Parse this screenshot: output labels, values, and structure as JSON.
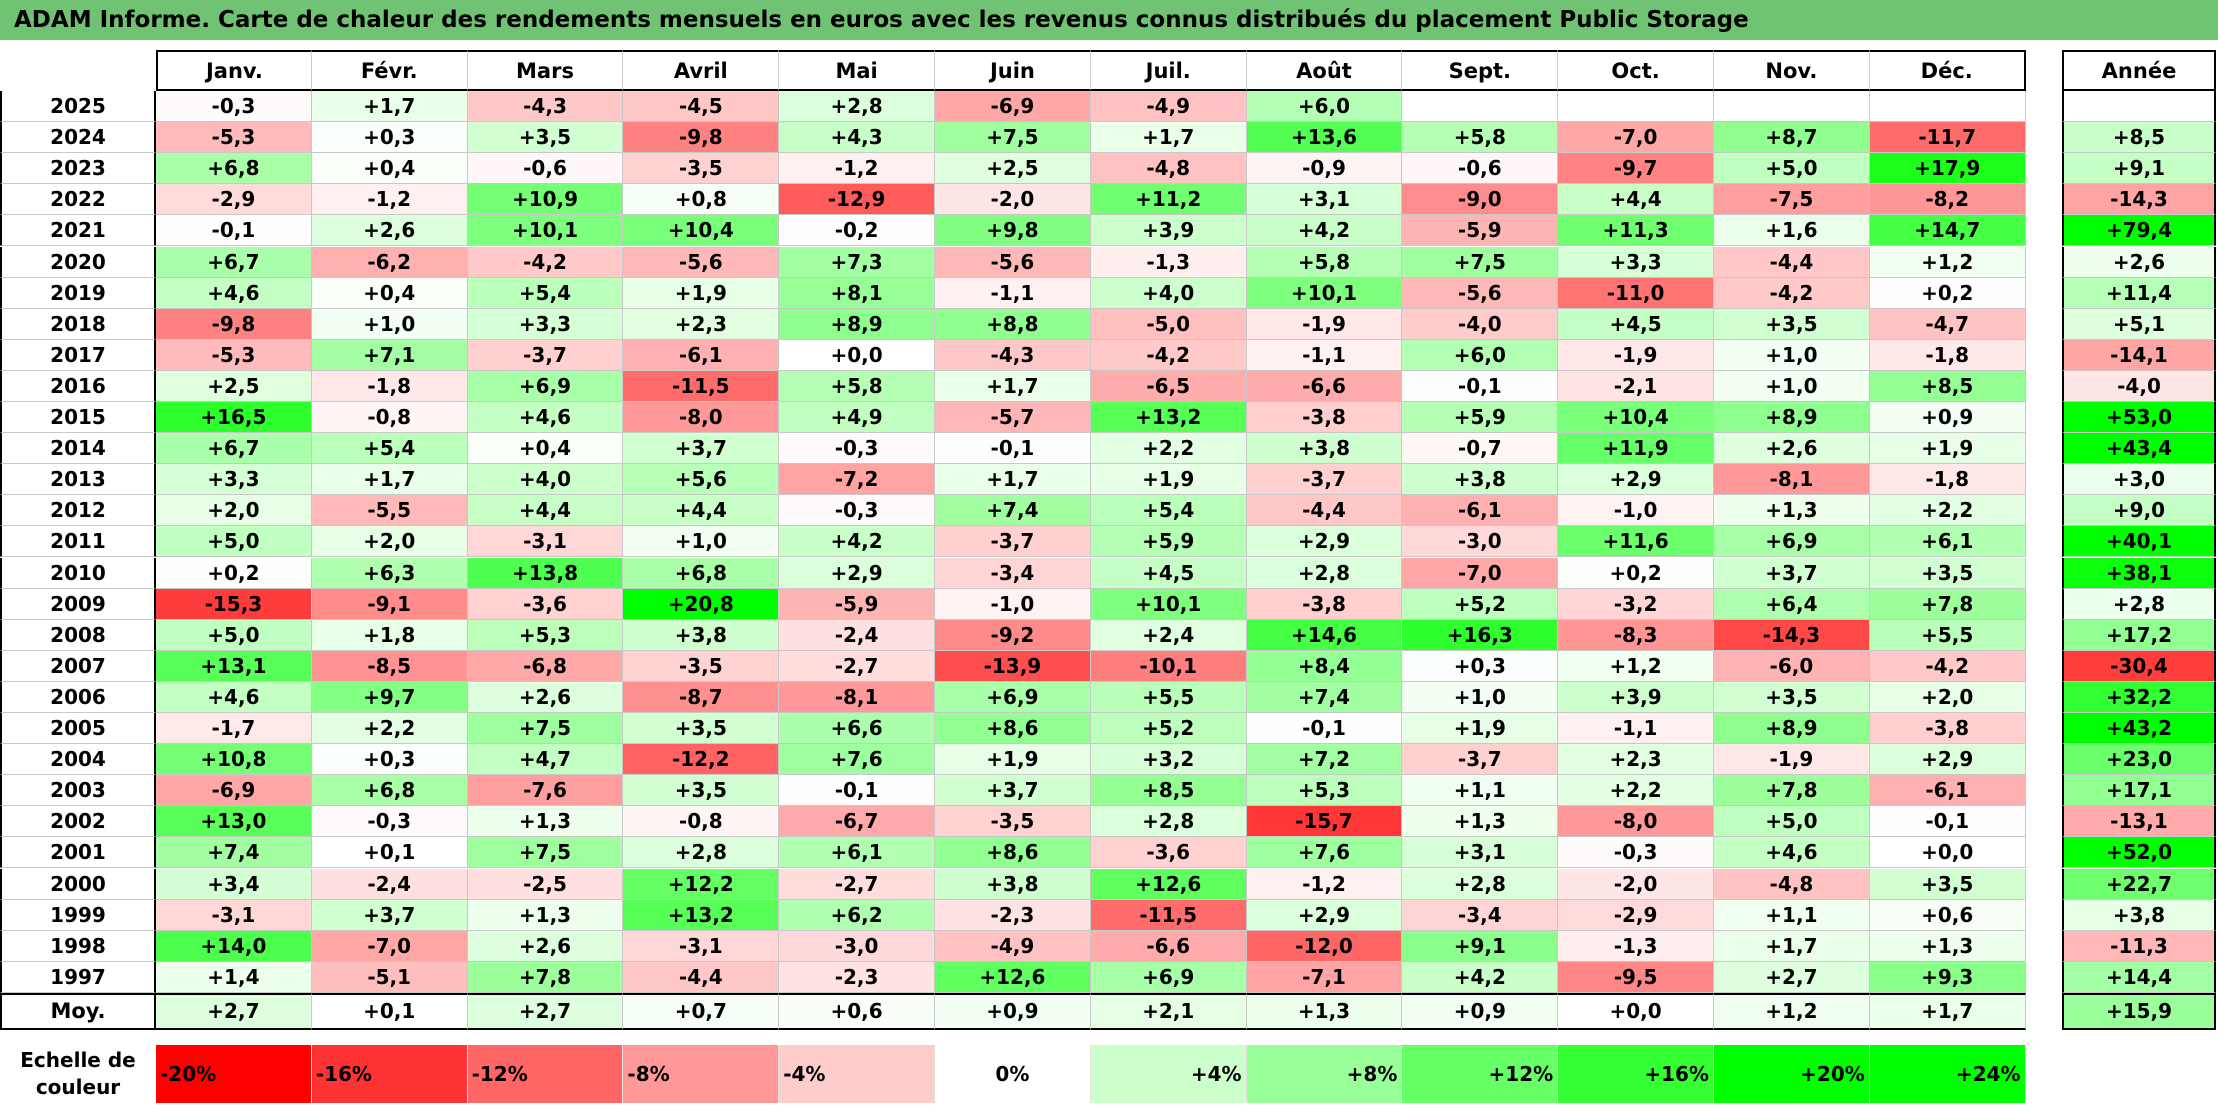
{
  "title": "ADAM Informe. Carte de chaleur des rendements mensuels en euros avec les revenus connus distribués du placement Public Storage",
  "chart_data": {
    "type": "heatmap",
    "months": [
      "Janv.",
      "Févr.",
      "Mars",
      "Avril",
      "Mai",
      "Juin",
      "Juil.",
      "Août",
      "Sept.",
      "Oct.",
      "Nov.",
      "Déc."
    ],
    "annual_header": "Année",
    "rows": [
      {
        "year": "2025",
        "values": [
          "-0,3",
          "+1,7",
          "-4,3",
          "-4,5",
          "+2,8",
          "-6,9",
          "-4,9",
          "+6,0",
          "",
          "",
          "",
          ""
        ],
        "annual": ""
      },
      {
        "year": "2024",
        "values": [
          "-5,3",
          "+0,3",
          "+3,5",
          "-9,8",
          "+4,3",
          "+7,5",
          "+1,7",
          "+13,6",
          "+5,8",
          "-7,0",
          "+8,7",
          "-11,7"
        ],
        "annual": "+8,5"
      },
      {
        "year": "2023",
        "values": [
          "+6,8",
          "+0,4",
          "-0,6",
          "-3,5",
          "-1,2",
          "+2,5",
          "-4,8",
          "-0,9",
          "-0,6",
          "-9,7",
          "+5,0",
          "+17,9"
        ],
        "annual": "+9,1"
      },
      {
        "year": "2022",
        "values": [
          "-2,9",
          "-1,2",
          "+10,9",
          "+0,8",
          "-12,9",
          "-2,0",
          "+11,2",
          "+3,1",
          "-9,0",
          "+4,4",
          "-7,5",
          "-8,2"
        ],
        "annual": "-14,3"
      },
      {
        "year": "2021",
        "values": [
          "-0,1",
          "+2,6",
          "+10,1",
          "+10,4",
          "-0,2",
          "+9,8",
          "+3,9",
          "+4,2",
          "-5,9",
          "+11,3",
          "+1,6",
          "+14,7"
        ],
        "annual": "+79,4"
      },
      {
        "year": "2020",
        "values": [
          "+6,7",
          "-6,2",
          "-4,2",
          "-5,6",
          "+7,3",
          "-5,6",
          "-1,3",
          "+5,8",
          "+7,5",
          "+3,3",
          "-4,4",
          "+1,2"
        ],
        "annual": "+2,6"
      },
      {
        "year": "2019",
        "values": [
          "+4,6",
          "+0,4",
          "+5,4",
          "+1,9",
          "+8,1",
          "-1,1",
          "+4,0",
          "+10,1",
          "-5,6",
          "-11,0",
          "-4,2",
          "+0,2"
        ],
        "annual": "+11,4"
      },
      {
        "year": "2018",
        "values": [
          "-9,8",
          "+1,0",
          "+3,3",
          "+2,3",
          "+8,9",
          "+8,8",
          "-5,0",
          "-1,9",
          "-4,0",
          "+4,5",
          "+3,5",
          "-4,7"
        ],
        "annual": "+5,1"
      },
      {
        "year": "2017",
        "values": [
          "-5,3",
          "+7,1",
          "-3,7",
          "-6,1",
          "+0,0",
          "-4,3",
          "-4,2",
          "-1,1",
          "+6,0",
          "-1,9",
          "+1,0",
          "-1,8"
        ],
        "annual": "-14,1"
      },
      {
        "year": "2016",
        "values": [
          "+2,5",
          "-1,8",
          "+6,9",
          "-11,5",
          "+5,8",
          "+1,7",
          "-6,5",
          "-6,6",
          "-0,1",
          "-2,1",
          "+1,0",
          "+8,5"
        ],
        "annual": "-4,0"
      },
      {
        "year": "2015",
        "values": [
          "+16,5",
          "-0,8",
          "+4,6",
          "-8,0",
          "+4,9",
          "-5,7",
          "+13,2",
          "-3,8",
          "+5,9",
          "+10,4",
          "+8,9",
          "+0,9"
        ],
        "annual": "+53,0"
      },
      {
        "year": "2014",
        "values": [
          "+6,7",
          "+5,4",
          "+0,4",
          "+3,7",
          "-0,3",
          "-0,1",
          "+2,2",
          "+3,8",
          "-0,7",
          "+11,9",
          "+2,6",
          "+1,9"
        ],
        "annual": "+43,4"
      },
      {
        "year": "2013",
        "values": [
          "+3,3",
          "+1,7",
          "+4,0",
          "+5,6",
          "-7,2",
          "+1,7",
          "+1,9",
          "-3,7",
          "+3,8",
          "+2,9",
          "-8,1",
          "-1,8"
        ],
        "annual": "+3,0"
      },
      {
        "year": "2012",
        "values": [
          "+2,0",
          "-5,5",
          "+4,4",
          "+4,4",
          "-0,3",
          "+7,4",
          "+5,4",
          "-4,4",
          "-6,1",
          "-1,0",
          "+1,3",
          "+2,2"
        ],
        "annual": "+9,0"
      },
      {
        "year": "2011",
        "values": [
          "+5,0",
          "+2,0",
          "-3,1",
          "+1,0",
          "+4,2",
          "-3,7",
          "+5,9",
          "+2,9",
          "-3,0",
          "+11,6",
          "+6,9",
          "+6,1"
        ],
        "annual": "+40,1"
      },
      {
        "year": "2010",
        "values": [
          "+0,2",
          "+6,3",
          "+13,8",
          "+6,8",
          "+2,9",
          "-3,4",
          "+4,5",
          "+2,8",
          "-7,0",
          "+0,2",
          "+3,7",
          "+3,5"
        ],
        "annual": "+38,1"
      },
      {
        "year": "2009",
        "values": [
          "-15,3",
          "-9,1",
          "-3,6",
          "+20,8",
          "-5,9",
          "-1,0",
          "+10,1",
          "-3,8",
          "+5,2",
          "-3,2",
          "+6,4",
          "+7,8"
        ],
        "annual": "+2,8"
      },
      {
        "year": "2008",
        "values": [
          "+5,0",
          "+1,8",
          "+5,3",
          "+3,8",
          "-2,4",
          "-9,2",
          "+2,4",
          "+14,6",
          "+16,3",
          "-8,3",
          "-14,3",
          "+5,5"
        ],
        "annual": "+17,2"
      },
      {
        "year": "2007",
        "values": [
          "+13,1",
          "-8,5",
          "-6,8",
          "-3,5",
          "-2,7",
          "-13,9",
          "-10,1",
          "+8,4",
          "+0,3",
          "+1,2",
          "-6,0",
          "-4,2"
        ],
        "annual": "-30,4"
      },
      {
        "year": "2006",
        "values": [
          "+4,6",
          "+9,7",
          "+2,6",
          "-8,7",
          "-8,1",
          "+6,9",
          "+5,5",
          "+7,4",
          "+1,0",
          "+3,9",
          "+3,5",
          "+2,0"
        ],
        "annual": "+32,2"
      },
      {
        "year": "2005",
        "values": [
          "-1,7",
          "+2,2",
          "+7,5",
          "+3,5",
          "+6,6",
          "+8,6",
          "+5,2",
          "-0,1",
          "+1,9",
          "-1,1",
          "+8,9",
          "-3,8"
        ],
        "annual": "+43,2"
      },
      {
        "year": "2004",
        "values": [
          "+10,8",
          "+0,3",
          "+4,7",
          "-12,2",
          "+7,6",
          "+1,9",
          "+3,2",
          "+7,2",
          "-3,7",
          "+2,3",
          "-1,9",
          "+2,9"
        ],
        "annual": "+23,0"
      },
      {
        "year": "2003",
        "values": [
          "-6,9",
          "+6,8",
          "-7,6",
          "+3,5",
          "-0,1",
          "+3,7",
          "+8,5",
          "+5,3",
          "+1,1",
          "+2,2",
          "+7,8",
          "-6,1"
        ],
        "annual": "+17,1"
      },
      {
        "year": "2002",
        "values": [
          "+13,0",
          "-0,3",
          "+1,3",
          "-0,8",
          "-6,7",
          "-3,5",
          "+2,8",
          "-15,7",
          "+1,3",
          "-8,0",
          "+5,0",
          "-0,1"
        ],
        "annual": "-13,1"
      },
      {
        "year": "2001",
        "values": [
          "+7,4",
          "+0,1",
          "+7,5",
          "+2,8",
          "+6,1",
          "+8,6",
          "-3,6",
          "+7,6",
          "+3,1",
          "-0,3",
          "+4,6",
          "+0,0"
        ],
        "annual": "+52,0"
      },
      {
        "year": "2000",
        "values": [
          "+3,4",
          "-2,4",
          "-2,5",
          "+12,2",
          "-2,7",
          "+3,8",
          "+12,6",
          "-1,2",
          "+2,8",
          "-2,0",
          "-4,8",
          "+3,5"
        ],
        "annual": "+22,7"
      },
      {
        "year": "1999",
        "values": [
          "-3,1",
          "+3,7",
          "+1,3",
          "+13,2",
          "+6,2",
          "-2,3",
          "-11,5",
          "+2,9",
          "-3,4",
          "-2,9",
          "+1,1",
          "+0,6"
        ],
        "annual": "+3,8"
      },
      {
        "year": "1998",
        "values": [
          "+14,0",
          "-7,0",
          "+2,6",
          "-3,1",
          "-3,0",
          "-4,9",
          "-6,6",
          "-12,0",
          "+9,1",
          "-1,3",
          "+1,7",
          "+1,3"
        ],
        "annual": "-11,3"
      },
      {
        "year": "1997",
        "values": [
          "+1,4",
          "-5,1",
          "+7,8",
          "-4,4",
          "-2,3",
          "+12,6",
          "+6,9",
          "-7,1",
          "+4,2",
          "-9,5",
          "+2,7",
          "+9,3"
        ],
        "annual": "+14,4"
      }
    ],
    "average": {
      "label": "Moy.",
      "values": [
        "+2,7",
        "+0,1",
        "+2,7",
        "+0,7",
        "+0,6",
        "+0,9",
        "+2,1",
        "+1,3",
        "+0,9",
        "+0,0",
        "+1,2",
        "+1,7"
      ],
      "annual": "+15,9"
    },
    "legend": {
      "title_line1": "Echelle de",
      "title_line2": "couleur",
      "items": [
        "-20%",
        "-16%",
        "-12%",
        "-8%",
        "-4%",
        "0%",
        "+4%",
        "+8%",
        "+12%",
        "+16%",
        "+20%",
        "+24%"
      ]
    },
    "colors": {
      "negative_max": "#ff0000",
      "neutral": "#ffffff",
      "positive_max": "#00ff00",
      "title_bar": "#6fc373"
    }
  }
}
